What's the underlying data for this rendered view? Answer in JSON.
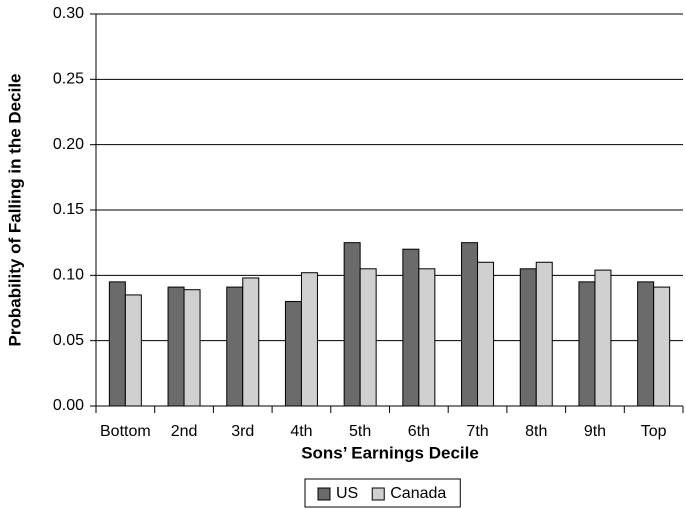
{
  "chart_data": {
    "type": "bar",
    "ylabel": "Probability of Falling in the Decile",
    "xlabel": "Sons’ Earnings Decile",
    "categories": [
      "Bottom",
      "2nd",
      "3rd",
      "4th",
      "5th",
      "6th",
      "7th",
      "8th",
      "9th",
      "Top"
    ],
    "series": [
      {
        "name": "US",
        "color": "#6b6b6b",
        "values": [
          0.095,
          0.091,
          0.091,
          0.08,
          0.125,
          0.12,
          0.125,
          0.105,
          0.095,
          0.095
        ]
      },
      {
        "name": "Canada",
        "color": "#d0d0d0",
        "values": [
          0.085,
          0.089,
          0.098,
          0.102,
          0.105,
          0.105,
          0.11,
          0.11,
          0.104,
          0.091
        ]
      }
    ],
    "ylim": [
      0,
      0.3
    ],
    "yticks": [
      {
        "value": 0,
        "label": "0.00"
      },
      {
        "value": 0.05,
        "label": "0.05"
      },
      {
        "value": 0.1,
        "label": "0.10"
      },
      {
        "value": 0.15,
        "label": "0.15"
      },
      {
        "value": 0.2,
        "label": "0.20"
      },
      {
        "value": 0.25,
        "label": "0.25"
      },
      {
        "value": 0.3,
        "label": "0.30"
      }
    ],
    "grid": true,
    "legend": "bottom"
  }
}
